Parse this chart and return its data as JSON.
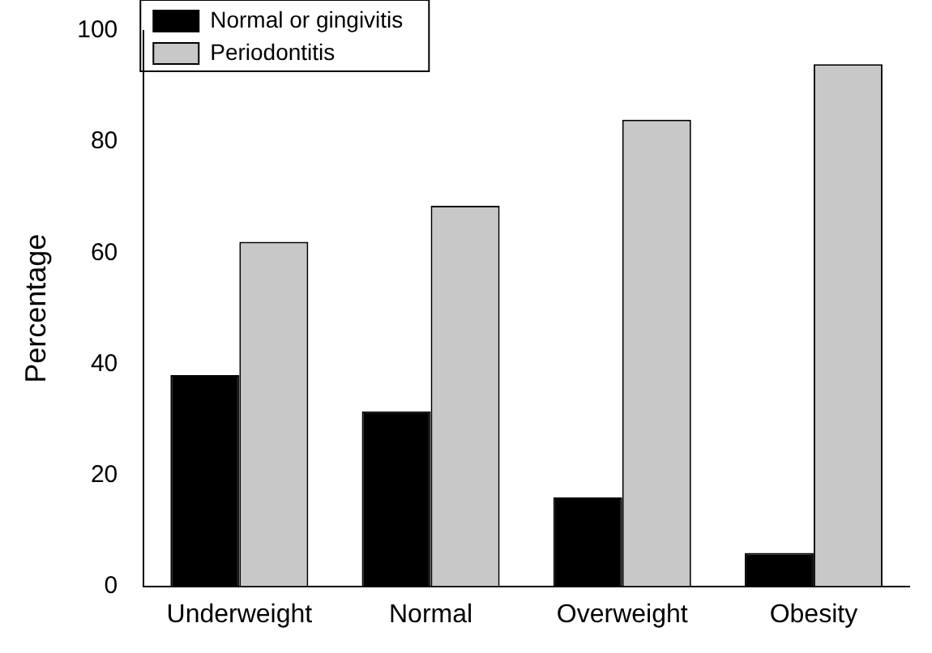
{
  "chart_data": {
    "type": "bar",
    "ylabel": "Percentage",
    "categories": [
      "Underweight",
      "Normal",
      "Overweight",
      "Obesity"
    ],
    "series": [
      {
        "name": "Normal or gingivitis",
        "color": "#000000",
        "values": [
          38,
          31.5,
          16,
          6
        ]
      },
      {
        "name": "Periodontitis",
        "color": "#c8c8c8",
        "values": [
          62,
          68.5,
          84,
          94
        ]
      }
    ],
    "ylim": [
      0,
      100
    ],
    "yticks": [
      0,
      20,
      40,
      60,
      80,
      100
    ],
    "grid": false,
    "legend": "top left"
  }
}
